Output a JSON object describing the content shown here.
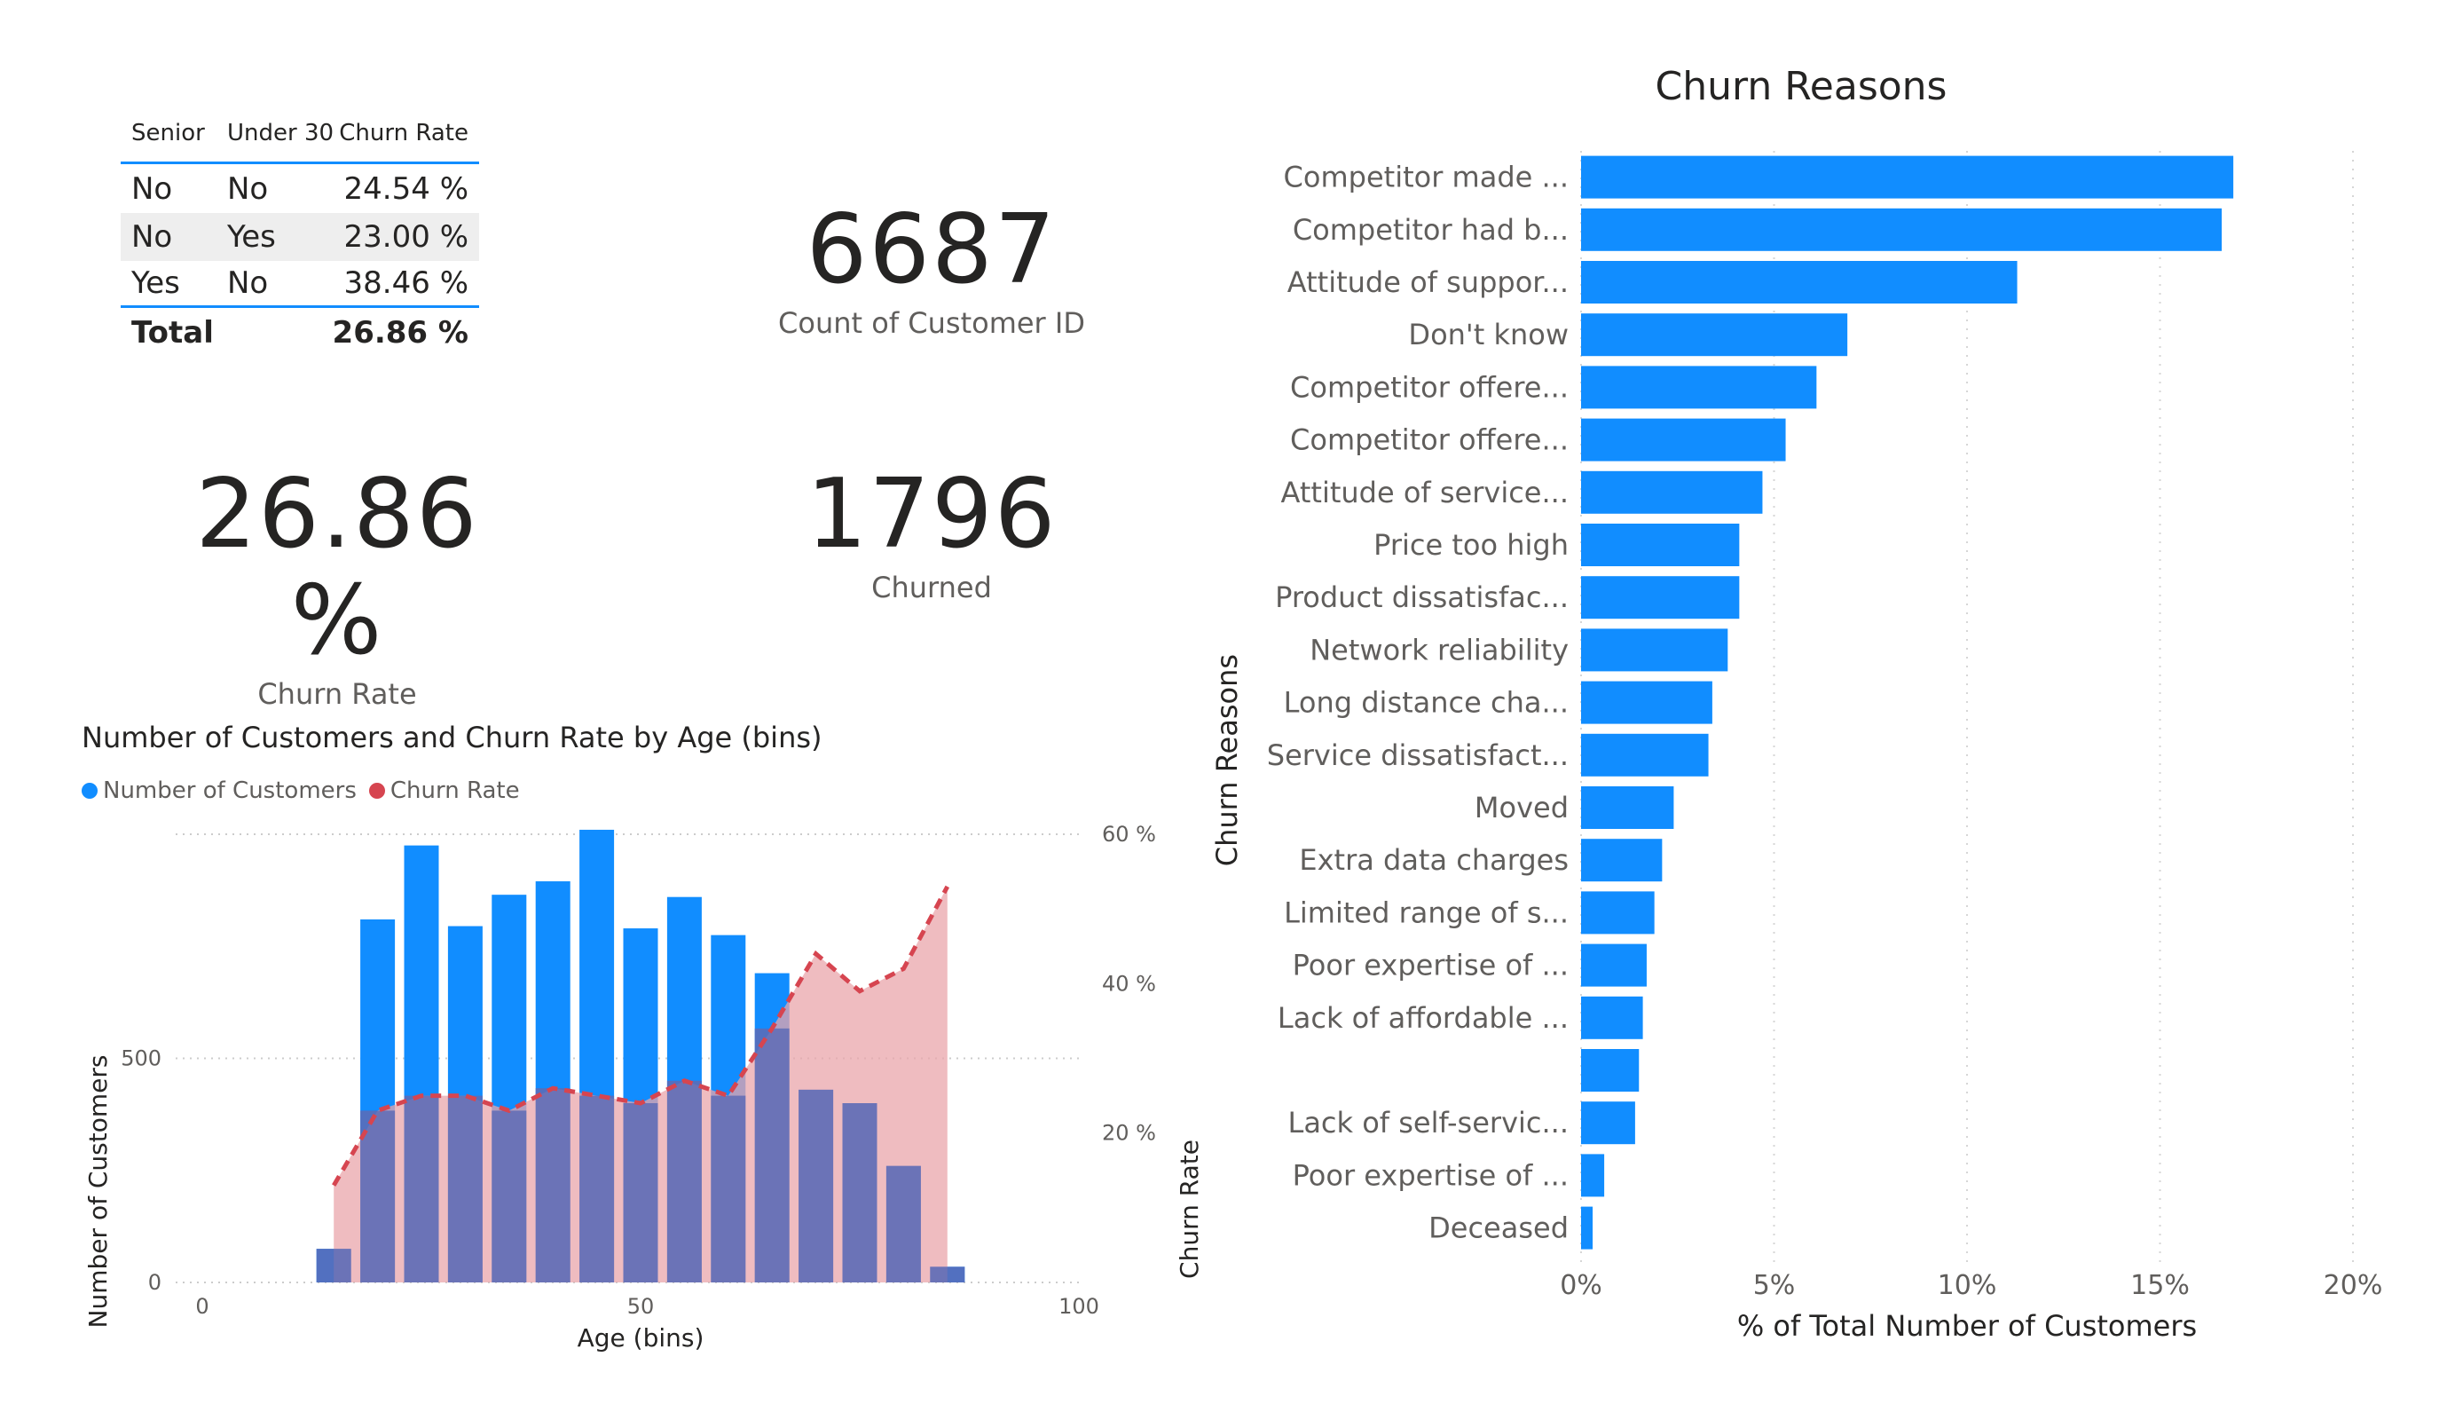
{
  "matrix": {
    "headers": [
      "Senior",
      "Under 30",
      "Churn Rate"
    ],
    "rows": [
      {
        "senior": "No",
        "under30": "No",
        "rate": "24.54 %"
      },
      {
        "senior": "No",
        "under30": "Yes",
        "rate": "23.00 %"
      },
      {
        "senior": "Yes",
        "under30": "No",
        "rate": "38.46 %"
      }
    ],
    "total_label": "Total",
    "total_value": "26.86 %"
  },
  "cards": {
    "customers": {
      "value": "6687",
      "label": "Count of Customer ID"
    },
    "churn_rate": {
      "value": "26.86 %",
      "label": "Churn Rate"
    },
    "churned": {
      "value": "1796",
      "label": "Churned"
    }
  },
  "colors": {
    "blue": "#118dff",
    "red": "#d64550",
    "area": "#e9a6ab",
    "overlap": "#5e6bb5"
  },
  "chart_data": [
    {
      "type": "bar",
      "title": "Number of Customers and Churn Rate by Age (bins)",
      "legend": [
        "Number of Customers",
        "Churn Rate"
      ],
      "xlabel": "Age (bins)",
      "ylabel": "Number of Customers",
      "y2label": "Churn Rate",
      "xlim": [
        0,
        100
      ],
      "ylim": [
        0,
        1000
      ],
      "y2lim": [
        0,
        60
      ],
      "x_ticks": [
        "0",
        "50",
        "100"
      ],
      "y_ticks": [
        "0",
        "500"
      ],
      "y2_ticks": [
        "20 %",
        "40 %",
        "60 %"
      ],
      "series": [
        {
          "name": "Number of Customers",
          "x": [
            15,
            20,
            25,
            30,
            35,
            40,
            45,
            50,
            55,
            60,
            65,
            70,
            75,
            80,
            85
          ],
          "values": [
            75,
            810,
            975,
            795,
            865,
            895,
            1010,
            790,
            860,
            775,
            690,
            430,
            400,
            260,
            35
          ]
        },
        {
          "name": "Churn Rate",
          "x": [
            15,
            20,
            25,
            30,
            35,
            40,
            45,
            50,
            55,
            60,
            65,
            70,
            75,
            80,
            85
          ],
          "values": [
            13,
            23,
            25,
            25,
            23,
            26,
            25,
            24,
            27,
            25,
            34,
            44,
            39,
            42,
            53
          ]
        }
      ]
    },
    {
      "type": "bar",
      "orientation": "horizontal",
      "title": "Churn Reasons",
      "xlabel": "% of Total Number of Customers",
      "ylabel": "Churn Reasons",
      "xlim": [
        0,
        20
      ],
      "x_ticks": [
        "0%",
        "5%",
        "10%",
        "15%",
        "20%"
      ],
      "categories": [
        "Competitor made ...",
        "Competitor had b...",
        "Attitude of suppor...",
        "Don't know",
        "Competitor offere...",
        "Competitor offere...",
        "Attitude of service...",
        "Price too high",
        "Product dissatisfac...",
        "Network reliability",
        "Long distance cha...",
        "Service dissatisfact...",
        "Moved",
        "Extra data charges",
        "Limited range of s...",
        "Poor expertise of ...",
        "Lack of affordable ...",
        "",
        "Lack of self-servic...",
        "Poor expertise of ...",
        "Deceased"
      ],
      "values": [
        16.9,
        16.6,
        11.3,
        6.9,
        6.1,
        5.3,
        4.7,
        4.1,
        4.1,
        3.8,
        3.4,
        3.3,
        2.4,
        2.1,
        1.9,
        1.7,
        1.6,
        1.5,
        1.4,
        0.6,
        0.3
      ]
    }
  ]
}
